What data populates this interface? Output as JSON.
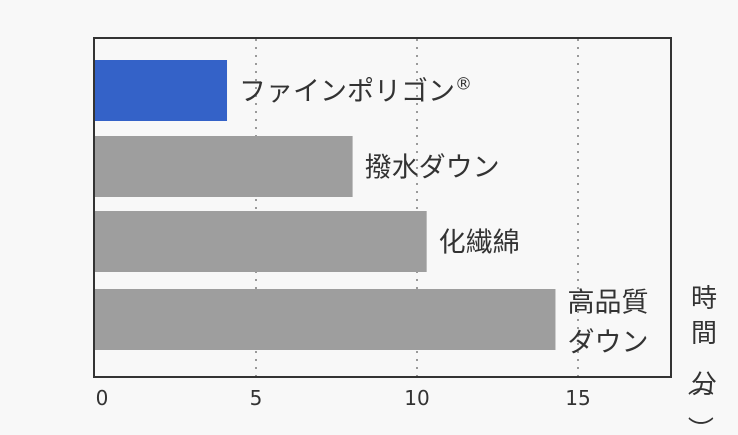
{
  "chart_data": {
    "type": "bar",
    "orientation": "horizontal",
    "categories": [
      "ファインポリゴン®",
      "撥水ダウン",
      "化繊綿",
      "高品質ダウン"
    ],
    "values": [
      4.1,
      8.0,
      10.3,
      14.3
    ],
    "value_axis_label": "時間（分）",
    "xlim": [
      0,
      18
    ],
    "ticks": [
      0,
      5,
      10,
      15
    ],
    "grid": "vertical dotted",
    "colors": {
      "highlight": "#3462c8",
      "highlight_text": "#2f5bbf",
      "default": "#9e9e9e",
      "text": "#333333",
      "frame": "#333333",
      "grid": "#9a9a9a"
    },
    "highlight_index": 0
  }
}
